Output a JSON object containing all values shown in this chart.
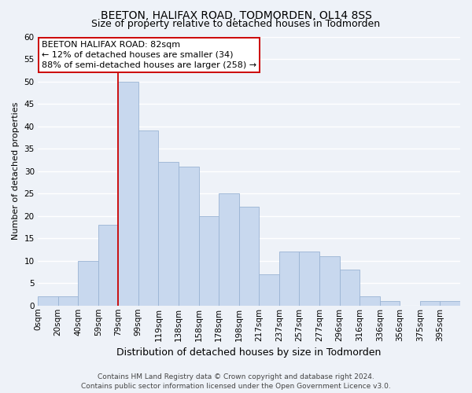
{
  "title": "BEETON, HALIFAX ROAD, TODMORDEN, OL14 8SS",
  "subtitle": "Size of property relative to detached houses in Todmorden",
  "xlabel": "Distribution of detached houses by size in Todmorden",
  "ylabel": "Number of detached properties",
  "bin_labels": [
    "0sqm",
    "20sqm",
    "40sqm",
    "59sqm",
    "79sqm",
    "99sqm",
    "119sqm",
    "138sqm",
    "158sqm",
    "178sqm",
    "198sqm",
    "217sqm",
    "237sqm",
    "257sqm",
    "277sqm",
    "296sqm",
    "316sqm",
    "336sqm",
    "356sqm",
    "375sqm",
    "395sqm"
  ],
  "bar_values": [
    2,
    2,
    10,
    18,
    50,
    39,
    32,
    31,
    20,
    25,
    22,
    7,
    12,
    12,
    11,
    8,
    2,
    1,
    0,
    1,
    1
  ],
  "bar_color": "#c8d8ee",
  "bar_edge_color": "#9ab4d4",
  "vline_x": 4,
  "vline_color": "#cc0000",
  "ylim": [
    0,
    60
  ],
  "yticks": [
    0,
    5,
    10,
    15,
    20,
    25,
    30,
    35,
    40,
    45,
    50,
    55,
    60
  ],
  "annotation_title": "BEETON HALIFAX ROAD: 82sqm",
  "annotation_line1": "← 12% of detached houses are smaller (34)",
  "annotation_line2": "88% of semi-detached houses are larger (258) →",
  "annotation_box_color": "#ffffff",
  "annotation_box_edge": "#cc0000",
  "footer_line1": "Contains HM Land Registry data © Crown copyright and database right 2024.",
  "footer_line2": "Contains public sector information licensed under the Open Government Licence v3.0.",
  "background_color": "#eef2f8",
  "grid_color": "#ffffff",
  "title_fontsize": 10,
  "subtitle_fontsize": 9,
  "xlabel_fontsize": 9,
  "ylabel_fontsize": 8,
  "tick_fontsize": 7.5,
  "annotation_fontsize": 8,
  "footer_fontsize": 6.5
}
